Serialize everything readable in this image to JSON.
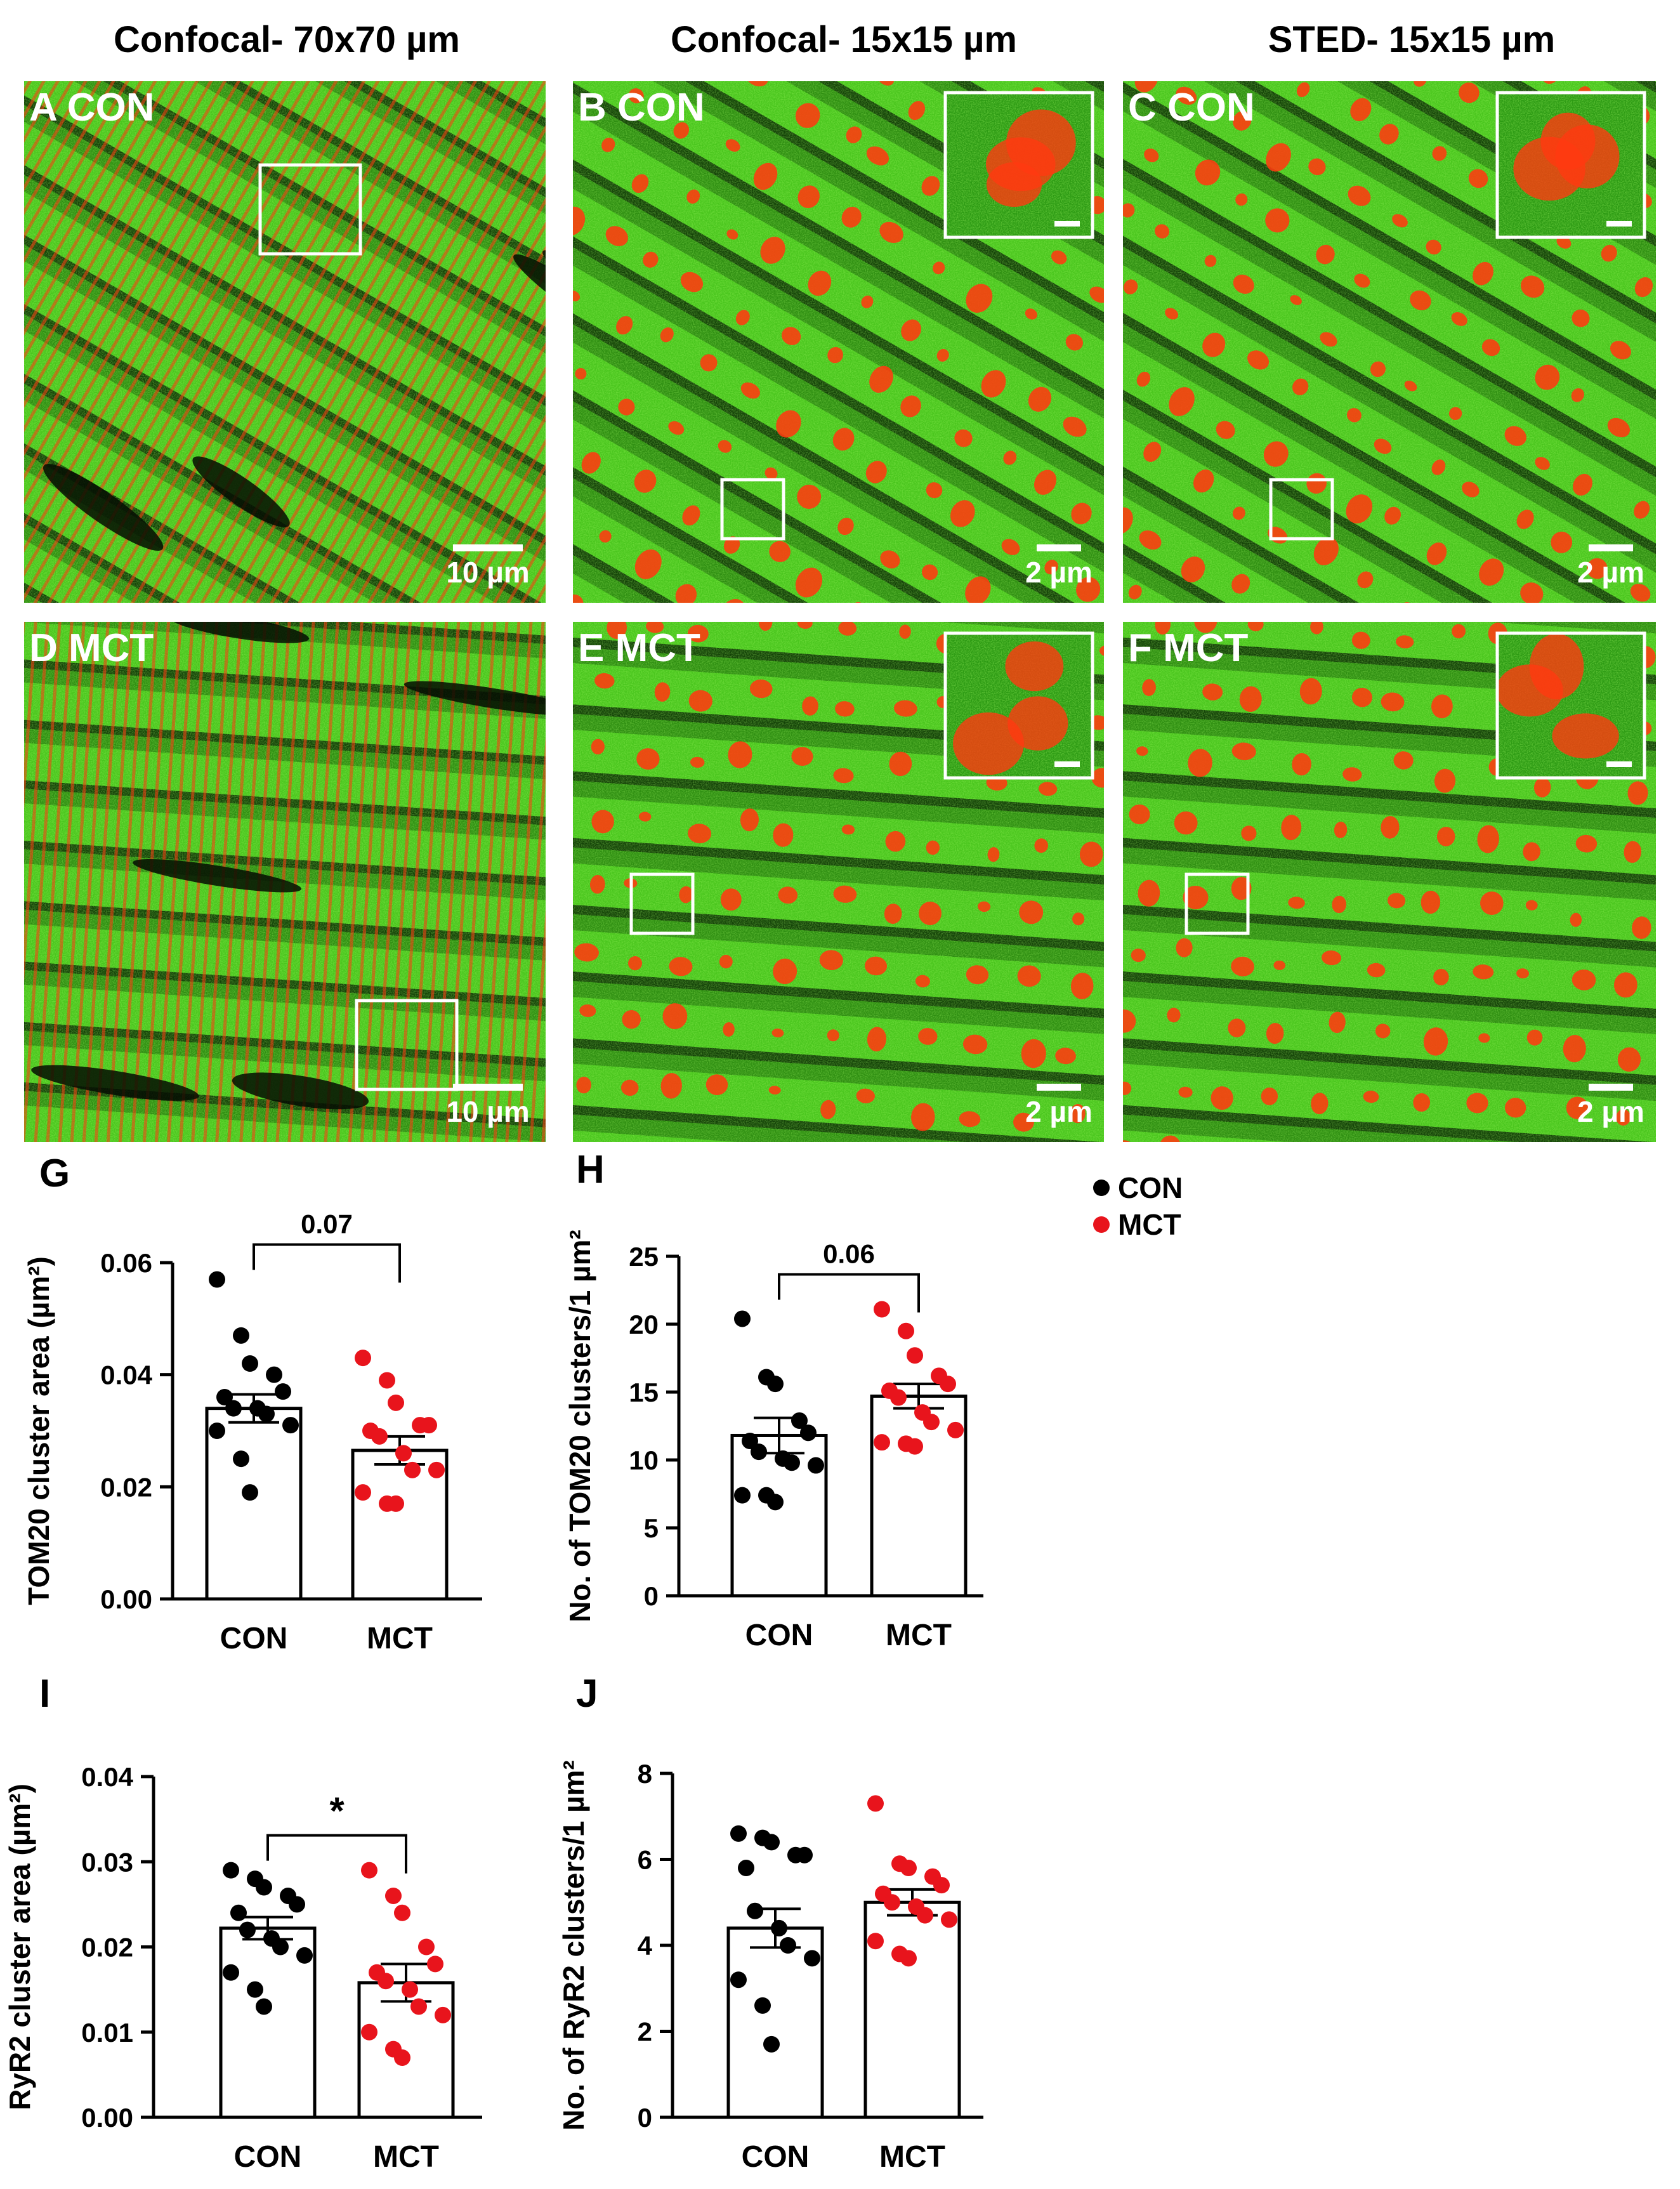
{
  "column_headers": [
    "Confocal- 70x70 µm",
    "Confocal- 15x15 µm",
    "STED- 15x15 µm"
  ],
  "panels": [
    {
      "letter": "A",
      "group": "CON",
      "scale_bar": "10 µm",
      "inset": false
    },
    {
      "letter": "B",
      "group": "CON",
      "scale_bar": "2 µm",
      "inset": true
    },
    {
      "letter": "C",
      "group": "CON",
      "scale_bar": "2 µm",
      "inset": true
    },
    {
      "letter": "D",
      "group": "MCT",
      "scale_bar": "10 µm",
      "inset": false
    },
    {
      "letter": "E",
      "group": "MCT",
      "scale_bar": "2 µm",
      "inset": true
    },
    {
      "letter": "F",
      "group": "MCT",
      "scale_bar": "2 µm",
      "inset": true
    }
  ],
  "legend": [
    {
      "label": "CON",
      "color": "#000000"
    },
    {
      "label": "MCT",
      "color": "#e8141c"
    }
  ],
  "colors": {
    "con": "#000000",
    "mct": "#e8141c",
    "micro_green": "#3fc21a",
    "micro_red": "#ff3a10"
  },
  "chart_data": [
    {
      "panel": "G",
      "type": "bar",
      "ylabel": "TOM20 cluster area (µm²)",
      "categories": [
        "CON",
        "MCT"
      ],
      "values": [
        0.034,
        0.0265
      ],
      "errors": [
        0.0025,
        0.0025
      ],
      "ylim": [
        0,
        0.06
      ],
      "yticks": [
        0.0,
        0.02,
        0.04,
        0.06
      ],
      "tick_labels": [
        "0.00",
        "0.02",
        "0.04",
        "0.06"
      ],
      "significance": "0.07",
      "points": [
        [
          0.057,
          0.047,
          0.042,
          0.04,
          0.037,
          0.036,
          0.034,
          0.034,
          0.033,
          0.031,
          0.03,
          0.025,
          0.019
        ],
        [
          0.043,
          0.039,
          0.035,
          0.031,
          0.031,
          0.03,
          0.029,
          0.026,
          0.023,
          0.023,
          0.019,
          0.017,
          0.017
        ]
      ]
    },
    {
      "panel": "H",
      "type": "bar",
      "ylabel": "No. of TOM20 clusters/1 µm²",
      "categories": [
        "CON",
        "MCT"
      ],
      "values": [
        11.8,
        14.7
      ],
      "errors": [
        1.3,
        0.9
      ],
      "ylim": [
        0,
        25
      ],
      "yticks": [
        0,
        5,
        10,
        15,
        20,
        25
      ],
      "tick_labels": [
        "0",
        "5",
        "10",
        "15",
        "20",
        "25"
      ],
      "significance": "0.06",
      "points": [
        [
          20.4,
          16.1,
          15.6,
          12.9,
          12.0,
          11.4,
          10.6,
          10.1,
          9.8,
          9.6,
          7.4,
          7.4,
          6.9
        ],
        [
          21.1,
          19.5,
          17.7,
          16.2,
          15.6,
          15.1,
          14.6,
          13.5,
          12.8,
          12.2,
          11.3,
          11.2,
          11.0
        ]
      ]
    },
    {
      "panel": "I",
      "type": "bar",
      "ylabel": "RyR2 cluster area (µm²)",
      "categories": [
        "CON",
        "MCT"
      ],
      "values": [
        0.0222,
        0.0158
      ],
      "errors": [
        0.0013,
        0.0022
      ],
      "ylim": [
        0,
        0.04
      ],
      "yticks": [
        0.0,
        0.01,
        0.02,
        0.03,
        0.04
      ],
      "tick_labels": [
        "0.00",
        "0.01",
        "0.02",
        "0.03",
        "0.04"
      ],
      "significance": "*",
      "points": [
        [
          0.029,
          0.028,
          0.027,
          0.026,
          0.025,
          0.024,
          0.022,
          0.021,
          0.02,
          0.019,
          0.017,
          0.015,
          0.013
        ],
        [
          0.029,
          0.026,
          0.024,
          0.02,
          0.018,
          0.017,
          0.016,
          0.015,
          0.013,
          0.012,
          0.01,
          0.008,
          0.007
        ]
      ]
    },
    {
      "panel": "J",
      "type": "bar",
      "ylabel": "No.  of RyR2 clusters/1 µm²",
      "categories": [
        "CON",
        "MCT"
      ],
      "values": [
        4.4,
        5.0
      ],
      "errors": [
        0.45,
        0.3
      ],
      "ylim": [
        0,
        8
      ],
      "yticks": [
        0,
        2,
        4,
        6,
        8
      ],
      "tick_labels": [
        "0",
        "2",
        "4",
        "6",
        "8"
      ],
      "significance": "",
      "points": [
        [
          6.6,
          6.5,
          6.4,
          6.1,
          6.1,
          5.8,
          4.8,
          4.4,
          4.0,
          3.7,
          3.2,
          2.6,
          1.7
        ],
        [
          7.3,
          5.9,
          5.8,
          5.6,
          5.4,
          5.2,
          5.0,
          4.9,
          4.7,
          4.6,
          4.1,
          3.8,
          3.7
        ]
      ]
    }
  ]
}
